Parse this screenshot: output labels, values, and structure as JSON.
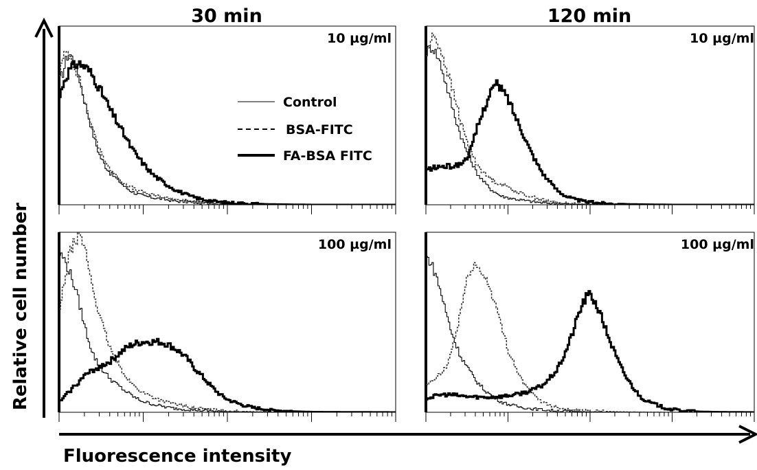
{
  "figure": {
    "column_titles": [
      "30 min",
      "120 min"
    ],
    "y_axis_title": "Relative cell number",
    "x_axis_title": "Fluorescence intensity"
  },
  "legend": {
    "items": [
      {
        "label": "Control",
        "style": "thin-solid"
      },
      {
        "label": "BSA-FITC",
        "style": "dashed"
      },
      {
        "label": "FA-BSA FITC",
        "style": "thick-solid"
      }
    ]
  },
  "colors": {
    "line": "#000000",
    "background": "#ffffff"
  },
  "chart_data": [
    {
      "type": "line",
      "title": "30 min",
      "annotation": "10 µg/ml",
      "x_scale": "log",
      "xlim": [
        1,
        10000
      ],
      "ylim": [
        0,
        100
      ],
      "series": [
        {
          "name": "Control",
          "x": [
            1,
            1.1,
            1.2,
            1.3,
            1.5,
            1.7,
            2,
            2.3,
            2.6,
            3,
            3.5,
            4,
            5,
            6,
            7,
            8,
            10,
            13,
            18,
            25,
            35,
            50,
            80,
            150,
            300,
            1000,
            10000
          ],
          "y": [
            72,
            76,
            84,
            87,
            82,
            73,
            58,
            47,
            37,
            28,
            22,
            18,
            14,
            10,
            8,
            6.5,
            5,
            4,
            3,
            2,
            1.5,
            1,
            0.5,
            0.3,
            0.2,
            0,
            0
          ]
        },
        {
          "name": "BSA-FITC",
          "x": [
            1,
            1.1,
            1.2,
            1.3,
            1.5,
            1.7,
            2,
            2.3,
            2.6,
            3,
            3.5,
            4,
            5,
            6,
            7,
            8,
            10,
            13,
            18,
            25,
            35,
            50,
            80,
            150,
            300,
            1000,
            10000
          ],
          "y": [
            76,
            84,
            88,
            86,
            80,
            72,
            58,
            48,
            39,
            31,
            25,
            20,
            15,
            12,
            10,
            8.5,
            7,
            5.5,
            4,
            3,
            2,
            1.2,
            0.6,
            0.3,
            0.2,
            0,
            0
          ]
        },
        {
          "name": "FA-BSA FITC",
          "x": [
            1,
            1.1,
            1.2,
            1.3,
            1.5,
            1.7,
            2,
            2.3,
            2.6,
            3,
            3.5,
            4,
            5,
            6,
            7,
            8,
            10,
            13,
            18,
            25,
            35,
            50,
            80,
            150,
            300,
            1000,
            10000
          ],
          "y": [
            62,
            70,
            74,
            77,
            80,
            81,
            79,
            76,
            72,
            66,
            60,
            54,
            46,
            39,
            33,
            29,
            23,
            17,
            12,
            8,
            5,
            3,
            1.5,
            0.8,
            0.3,
            0,
            0
          ]
        }
      ]
    },
    {
      "type": "line",
      "title": "120 min",
      "annotation": "10 µg/ml",
      "x_scale": "log",
      "xlim": [
        1,
        10000
      ],
      "ylim": [
        0,
        100
      ],
      "series": [
        {
          "name": "Control",
          "x": [
            1,
            1.1,
            1.2,
            1.3,
            1.5,
            1.7,
            2,
            2.3,
            2.6,
            3,
            3.5,
            4,
            5,
            6,
            7,
            8,
            10,
            13,
            18,
            25,
            35,
            50,
            80,
            150,
            300,
            1000,
            10000
          ],
          "y": [
            88,
            90,
            90,
            87,
            80,
            70,
            58,
            48,
            40,
            32,
            25,
            19,
            13,
            9,
            7,
            5,
            4,
            3,
            2,
            1.2,
            0.8,
            0.5,
            0.3,
            0.2,
            0,
            0,
            0
          ]
        },
        {
          "name": "BSA-FITC",
          "x": [
            1,
            1.1,
            1.2,
            1.3,
            1.5,
            1.7,
            2,
            2.3,
            2.6,
            3,
            3.5,
            4,
            5,
            6,
            7,
            8,
            10,
            13,
            18,
            25,
            35,
            50,
            80,
            150,
            300,
            1000,
            10000
          ],
          "y": [
            86,
            92,
            97,
            95,
            88,
            80,
            68,
            58,
            48,
            38,
            30,
            24,
            18,
            15,
            13,
            12,
            10,
            7,
            5,
            3,
            1.5,
            0.8,
            0.4,
            0.2,
            0,
            0,
            0
          ]
        },
        {
          "name": "FA-BSA FITC",
          "x": [
            1,
            1.2,
            1.5,
            2,
            2.5,
            3,
            3.5,
            4,
            5,
            6,
            7,
            8,
            10,
            12,
            15,
            18,
            22,
            27,
            33,
            40,
            50,
            65,
            80,
            100,
            150,
            300,
            1000,
            10000
          ],
          "y": [
            20,
            21,
            22,
            22,
            23,
            26,
            32,
            42,
            55,
            65,
            69,
            67,
            60,
            51,
            41,
            32,
            24,
            17,
            12,
            8,
            5,
            3,
            2,
            1.5,
            0.8,
            0.3,
            0,
            0
          ]
        }
      ]
    },
    {
      "type": "line",
      "title": "30 min",
      "annotation": "100 µg/ml",
      "x_scale": "log",
      "xlim": [
        1,
        10000
      ],
      "ylim": [
        0,
        100
      ],
      "series": [
        {
          "name": "Control",
          "x": [
            1,
            1.1,
            1.2,
            1.3,
            1.5,
            1.7,
            2,
            2.3,
            2.6,
            3,
            3.5,
            4,
            5,
            6,
            7,
            8,
            10,
            13,
            18,
            25,
            35,
            50,
            80,
            150,
            300,
            1000,
            10000
          ],
          "y": [
            90,
            88,
            84,
            80,
            72,
            62,
            48,
            38,
            31,
            26,
            22,
            19,
            15,
            12,
            10,
            8,
            6,
            4.5,
            3,
            2,
            1.5,
            1,
            0.5,
            0.3,
            0.1,
            0,
            0
          ]
        },
        {
          "name": "BSA-FITC",
          "x": [
            1,
            1.1,
            1.2,
            1.3,
            1.5,
            1.7,
            1.9,
            2.1,
            2.3,
            2.6,
            3,
            3.5,
            4,
            5,
            6,
            7,
            8,
            10,
            13,
            18,
            25,
            35,
            50,
            80,
            150,
            300,
            1000,
            10000
          ],
          "y": [
            58,
            70,
            82,
            90,
            97,
            100,
            96,
            88,
            78,
            66,
            54,
            44,
            36,
            27,
            21,
            17,
            14,
            11,
            8.5,
            6,
            4.5,
            3,
            2,
            1,
            0.5,
            0.2,
            0,
            0
          ]
        },
        {
          "name": "FA-BSA FITC",
          "x": [
            1,
            1.2,
            1.5,
            2,
            2.5,
            3,
            4,
            5,
            6,
            7,
            8,
            10,
            12,
            15,
            18,
            22,
            27,
            33,
            40,
            50,
            65,
            80,
            100,
            150,
            200,
            300,
            500,
            1000,
            10000
          ],
          "y": [
            6,
            10,
            15,
            21,
            24,
            26,
            29,
            33,
            36,
            38,
            39,
            40,
            40,
            40,
            39,
            37,
            34,
            30,
            25,
            20,
            14,
            10,
            7,
            4,
            2.5,
            1.5,
            0.6,
            0.2,
            0
          ]
        }
      ]
    },
    {
      "type": "line",
      "title": "120 min",
      "annotation": "100 µg/ml",
      "x_scale": "log",
      "xlim": [
        1,
        10000
      ],
      "ylim": [
        0,
        100
      ],
      "series": [
        {
          "name": "Control",
          "x": [
            1,
            1.1,
            1.2,
            1.3,
            1.5,
            1.7,
            2,
            2.3,
            2.6,
            3,
            3.5,
            4,
            5,
            6,
            7,
            8,
            10,
            13,
            18,
            25,
            35,
            50,
            80,
            150,
            300,
            1000,
            10000
          ],
          "y": [
            88,
            86,
            82,
            78,
            68,
            58,
            46,
            38,
            32,
            27,
            22,
            18,
            13,
            10,
            8,
            6,
            4.5,
            3.2,
            2.2,
            1.5,
            1,
            0.6,
            0.3,
            0.2,
            0.1,
            0,
            0
          ]
        },
        {
          "name": "BSA-FITC",
          "x": [
            1,
            1.2,
            1.5,
            1.8,
            2,
            2.3,
            2.6,
            3,
            3.4,
            3.8,
            4.2,
            5,
            6,
            7,
            8,
            9,
            10,
            12,
            15,
            18,
            22,
            27,
            35,
            50,
            80,
            150,
            300,
            1000,
            10000
          ],
          "y": [
            15,
            18,
            22,
            27,
            35,
            45,
            58,
            72,
            81,
            84,
            82,
            78,
            70,
            60,
            50,
            42,
            35,
            26,
            17,
            12,
            8,
            5.5,
            3.5,
            2,
            1,
            0.5,
            0.2,
            0,
            0
          ]
        },
        {
          "name": "FA-BSA FITC",
          "x": [
            1,
            1.5,
            2,
            3,
            5,
            8,
            12,
            18,
            25,
            30,
            40,
            50,
            60,
            70,
            80,
            90,
            100,
            120,
            150,
            180,
            220,
            270,
            330,
            400,
            500,
            650,
            800,
            1000,
            1500,
            2000,
            3000,
            10000
          ],
          "y": [
            8,
            10,
            10,
            9,
            8.5,
            9,
            10,
            12,
            15,
            18,
            25,
            35,
            45,
            55,
            62,
            66,
            67,
            60,
            48,
            38,
            28,
            20,
            14,
            9,
            6,
            4,
            2.5,
            1.5,
            0.8,
            0.4,
            0.2,
            0
          ]
        }
      ]
    }
  ]
}
